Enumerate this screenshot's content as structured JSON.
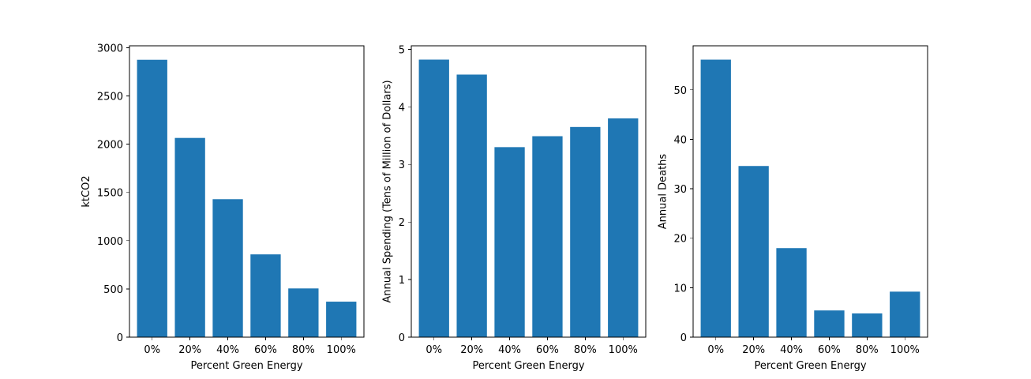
{
  "chart_data": [
    {
      "type": "bar",
      "categories": [
        "0%",
        "20%",
        "40%",
        "60%",
        "80%",
        "100%"
      ],
      "values": [
        2875,
        2065,
        1430,
        858,
        505,
        368
      ],
      "xlabel": "Percent Green Energy",
      "ylabel": "ktCO2",
      "ylim": [
        0,
        3020
      ],
      "yticks": [
        0,
        500,
        1000,
        1500,
        2000,
        2500,
        3000
      ],
      "color": "#1f77b4",
      "grid": false
    },
    {
      "type": "bar",
      "categories": [
        "0%",
        "20%",
        "40%",
        "60%",
        "80%",
        "100%"
      ],
      "values": [
        4.82,
        4.56,
        3.3,
        3.49,
        3.65,
        3.8
      ],
      "xlabel": "Percent Green Energy",
      "ylabel": "Annual Spending (Tens of Million of Dollars)",
      "ylim": [
        0,
        5.06
      ],
      "yticks": [
        0,
        1,
        2,
        3,
        4,
        5
      ],
      "color": "#1f77b4",
      "grid": false
    },
    {
      "type": "bar",
      "categories": [
        "0%",
        "20%",
        "40%",
        "60%",
        "80%",
        "100%"
      ],
      "values": [
        56.1,
        34.6,
        18.0,
        5.4,
        4.8,
        9.2
      ],
      "xlabel": "Percent Green Energy",
      "ylabel": "Annual Deaths",
      "ylim": [
        0,
        58.9
      ],
      "yticks": [
        0,
        10,
        20,
        30,
        40,
        50
      ],
      "color": "#1f77b4",
      "grid": false
    }
  ]
}
